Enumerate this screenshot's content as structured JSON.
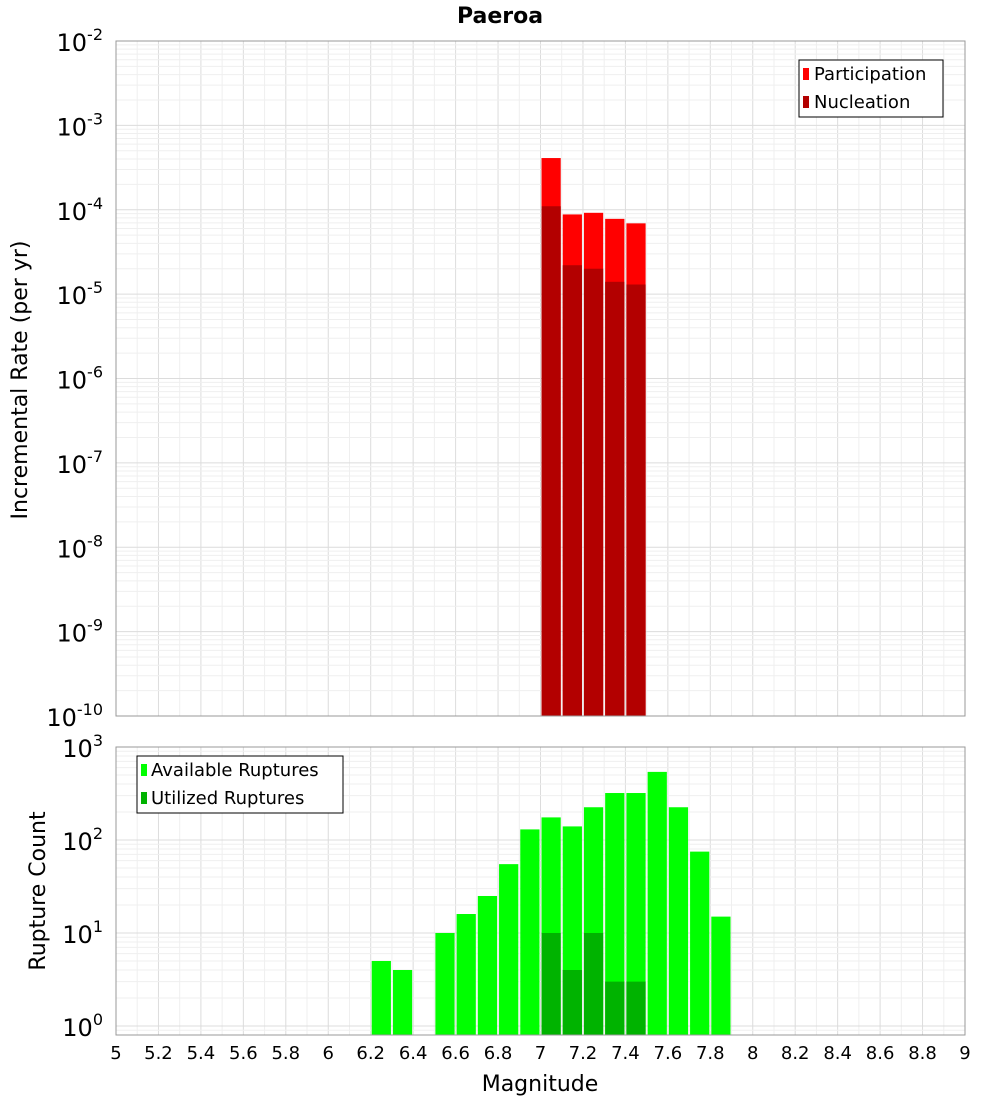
{
  "title": "Paeroa",
  "x_axis": {
    "label": "Magnitude",
    "ticks": [
      "5",
      "5.2",
      "5.4",
      "5.6",
      "5.8",
      "6",
      "6.2",
      "6.4",
      "6.6",
      "6.8",
      "7",
      "7.2",
      "7.4",
      "7.6",
      "7.8",
      "8",
      "8.2",
      "8.4",
      "8.6",
      "8.8",
      "9"
    ]
  },
  "colors": {
    "participation": "#ff0000",
    "nucleation": "#b30000",
    "available": "#00ff00",
    "utilized": "#00b300"
  },
  "chart_data": [
    {
      "type": "bar",
      "title": "Paeroa",
      "ylabel": "Incremental Rate (per yr)",
      "xlabel": "Magnitude",
      "xlim": [
        5,
        9
      ],
      "ylim": [
        1e-10,
        0.01
      ],
      "yscale": "log",
      "y_tick_exponents": [
        "-2",
        "-3",
        "-4",
        "-5",
        "-6",
        "-7",
        "-8",
        "-9",
        "-10"
      ],
      "grid": true,
      "legend_position": "top-right",
      "bin_width": 0.1,
      "x": [
        7.05,
        7.15,
        7.25,
        7.35,
        7.45
      ],
      "series": [
        {
          "name": "Participation",
          "values": [
            0.00041,
            8.8e-05,
            9.2e-05,
            7.8e-05,
            6.9e-05
          ]
        },
        {
          "name": "Nucleation",
          "values": [
            0.00011,
            2.2e-05,
            2e-05,
            1.4e-05,
            1.3e-05
          ]
        }
      ]
    },
    {
      "type": "bar",
      "ylabel": "Rupture Count",
      "xlabel": "Magnitude",
      "xlim": [
        5,
        9
      ],
      "ylim": [
        0.8,
        1000
      ],
      "yscale": "log",
      "y_tick_exponents": [
        "3",
        "2",
        "1",
        "0"
      ],
      "grid": true,
      "legend_position": "top-left",
      "bin_width": 0.1,
      "x": [
        6.25,
        6.35,
        6.55,
        6.65,
        6.75,
        6.85,
        6.95,
        7.05,
        7.15,
        7.25,
        7.35,
        7.45,
        7.55,
        7.65,
        7.75,
        7.85
      ],
      "series": [
        {
          "name": "Available Ruptures",
          "values": [
            5,
            4,
            10,
            16,
            25,
            55,
            130,
            175,
            140,
            225,
            320,
            320,
            540,
            225,
            75,
            15
          ]
        },
        {
          "name": "Utilized Ruptures",
          "x": [
            7.05,
            7.15,
            7.25,
            7.35,
            7.45
          ],
          "values": [
            10,
            4,
            10,
            3,
            3
          ]
        }
      ]
    }
  ]
}
